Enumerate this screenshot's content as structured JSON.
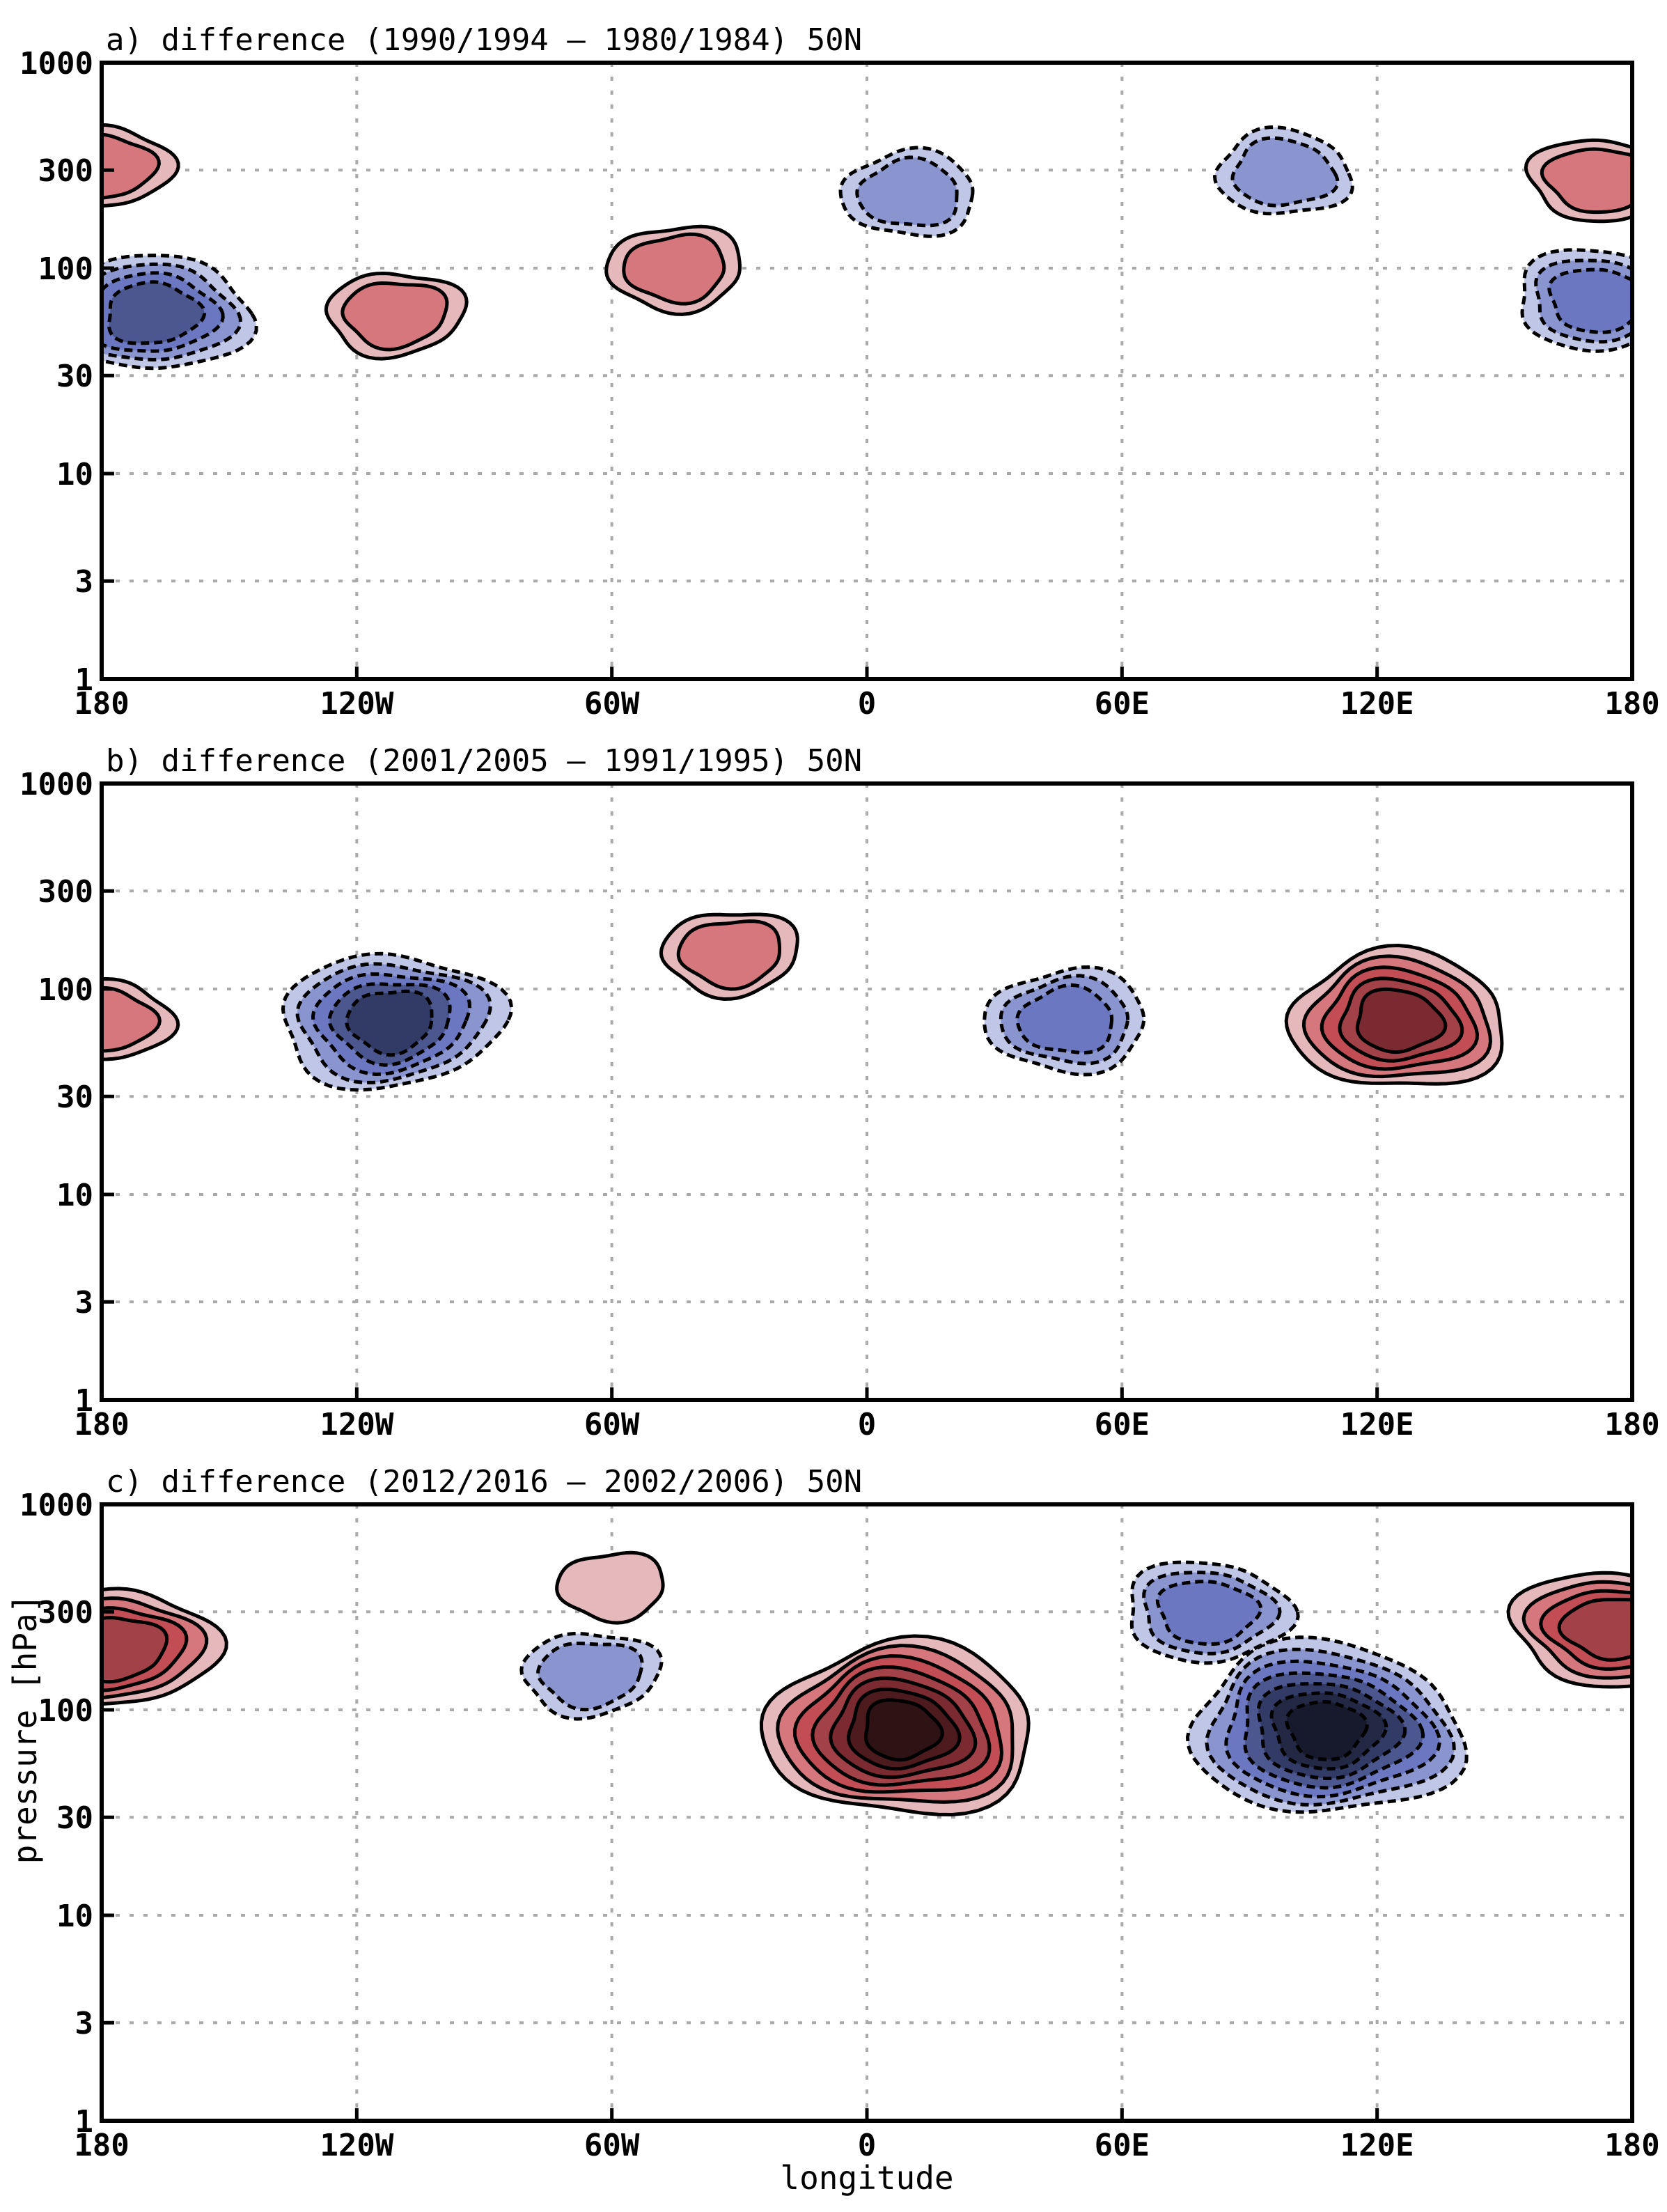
{
  "chart_data": [
    {
      "type": "contour",
      "panel": "a",
      "title": "a) difference (1990/1994 – 1980/1984) 50N",
      "xlabel": "",
      "ylabel": "",
      "xlim": [
        -180,
        180
      ],
      "ylim": [
        1000,
        1
      ],
      "y_scale": "log",
      "x_ticks": [
        -180,
        -120,
        -60,
        0,
        60,
        120,
        180
      ],
      "x_tick_labels": [
        "180",
        "120W",
        "60W",
        "0",
        "60E",
        "120E",
        "180"
      ],
      "y_ticks": [
        1,
        3,
        10,
        30,
        100,
        300,
        1000
      ],
      "y_tick_labels": [
        "1",
        "3",
        "10",
        "30",
        "100",
        "300",
        "1000"
      ],
      "grid": true,
      "features": [
        {
          "sign": "neg",
          "center": [
            -168,
            60
          ],
          "levels": 4
        },
        {
          "sign": "pos",
          "center": [
            -180,
            310
          ],
          "levels": 2
        },
        {
          "sign": "pos",
          "center": [
            -111,
            60
          ],
          "levels": 2
        },
        {
          "sign": "pos",
          "center": [
            -45,
            100
          ],
          "levels": 2
        },
        {
          "sign": "neg",
          "center": [
            10,
            230
          ],
          "levels": 2
        },
        {
          "sign": "neg",
          "center": [
            98,
            290
          ],
          "levels": 2
        },
        {
          "sign": "neg",
          "center": [
            172,
            70
          ],
          "levels": 3
        },
        {
          "sign": "pos",
          "center": [
            172,
            270
          ],
          "levels": 2
        }
      ]
    },
    {
      "type": "contour",
      "panel": "b",
      "title": "b) difference (2001/2005 – 1991/1995) 50N",
      "xlabel": "",
      "ylabel": "",
      "xlim": [
        -180,
        180
      ],
      "ylim": [
        1000,
        1
      ],
      "y_scale": "log",
      "x_ticks": [
        -180,
        -120,
        -60,
        0,
        60,
        120,
        180
      ],
      "x_tick_labels": [
        "180",
        "120W",
        "60W",
        "0",
        "60E",
        "120E",
        "180"
      ],
      "y_ticks": [
        1,
        3,
        10,
        30,
        100,
        300,
        1000
      ],
      "y_tick_labels": [
        "1",
        "3",
        "10",
        "30",
        "100",
        "300",
        "1000"
      ],
      "grid": true,
      "features": [
        {
          "sign": "pos",
          "center": [
            -180,
            70
          ],
          "levels": 2
        },
        {
          "sign": "neg",
          "center": [
            -112,
            70
          ],
          "levels": 5
        },
        {
          "sign": "pos",
          "center": [
            -32,
            150
          ],
          "levels": 2
        },
        {
          "sign": "neg",
          "center": [
            47,
            70
          ],
          "levels": 3
        },
        {
          "sign": "pos",
          "center": [
            125,
            70
          ],
          "levels": 5
        }
      ]
    },
    {
      "type": "contour",
      "panel": "c",
      "title": "c) difference (2012/2016 – 2002/2006) 50N",
      "xlabel": "longitude",
      "ylabel": "pressure [hPa]",
      "xlim": [
        -180,
        180
      ],
      "ylim": [
        1000,
        1
      ],
      "y_scale": "log",
      "x_ticks": [
        -180,
        -120,
        -60,
        0,
        60,
        120,
        180
      ],
      "x_tick_labels": [
        "180",
        "120W",
        "60W",
        "0",
        "60E",
        "120E",
        "180"
      ],
      "y_ticks": [
        1,
        3,
        10,
        30,
        100,
        300,
        1000
      ],
      "y_tick_labels": [
        "1",
        "3",
        "10",
        "30",
        "100",
        "300",
        "1000"
      ],
      "grid": true,
      "features": [
        {
          "sign": "pos",
          "center": [
            -176,
            200
          ],
          "levels": 4
        },
        {
          "sign": "neg",
          "center": [
            -65,
            150
          ],
          "levels": 2
        },
        {
          "sign": "pos",
          "center": [
            -60,
            400
          ],
          "levels": 1
        },
        {
          "sign": "pos",
          "center": [
            8,
            80
          ],
          "levels": 7
        },
        {
          "sign": "neg",
          "center": [
            108,
            80
          ],
          "levels": 7
        },
        {
          "sign": "neg",
          "center": [
            80,
            300
          ],
          "levels": 3
        },
        {
          "sign": "pos",
          "center": [
            175,
            250
          ],
          "levels": 4
        }
      ]
    }
  ],
  "colors": {
    "pos": [
      "#e5b8bb",
      "#d6777d",
      "#c24d55",
      "#a34148",
      "#7a2a30",
      "#4d1a1d",
      "#2e1214"
    ],
    "neg": [
      "#c0c6e6",
      "#8a95cf",
      "#6b77c0",
      "#4d578f",
      "#323a66",
      "#232844",
      "#161a2c"
    ],
    "grid": "#aaaaaa"
  }
}
